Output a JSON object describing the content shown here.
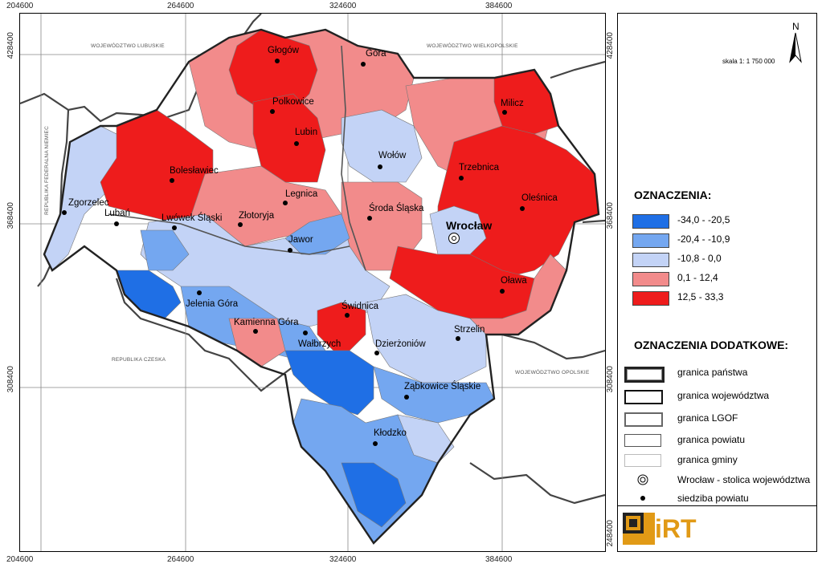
{
  "coordinates": {
    "top": [
      "204600",
      "264600",
      "324600",
      "384600"
    ],
    "bottom": [
      "204600",
      "264600",
      "324600",
      "384600"
    ],
    "left": [
      "428400",
      "368400",
      "308400"
    ],
    "right": [
      "428400",
      "368400",
      "308400",
      "248400"
    ]
  },
  "neighbors": {
    "lubuskie": "WOJEWÓDZTWO LUBUSKIE",
    "wielkopolskie": "WOJEWÓDZTWO WIELKOPOLSKIE",
    "niemcy": "REPUBLIKA FEDERALNA NIEMIEC",
    "czechy": "REPUBLIKA CZESKA",
    "opolskie": "WOJEWÓDZTWO OPOLSKIE"
  },
  "cities": [
    {
      "name": "Głogów"
    },
    {
      "name": "Góra"
    },
    {
      "name": "Polkowice"
    },
    {
      "name": "Lubin"
    },
    {
      "name": "Milicz"
    },
    {
      "name": "Wołów"
    },
    {
      "name": "Trzebnica"
    },
    {
      "name": "Bolesławiec"
    },
    {
      "name": "Oleśnica"
    },
    {
      "name": "Legnica"
    },
    {
      "name": "Zgorzelec"
    },
    {
      "name": "Lubań"
    },
    {
      "name": "Lwówek Śląski"
    },
    {
      "name": "Złotoryja"
    },
    {
      "name": "Środa Śląska"
    },
    {
      "name": "Wrocław"
    },
    {
      "name": "Jawor"
    },
    {
      "name": "Oława"
    },
    {
      "name": "Jelenia Góra"
    },
    {
      "name": "Świdnica"
    },
    {
      "name": "Kamienna Góra"
    },
    {
      "name": "Wałbrzych"
    },
    {
      "name": "Strzelin"
    },
    {
      "name": "Dzierżoniów"
    },
    {
      "name": "Ząbkowice Śląskie"
    },
    {
      "name": "Kłodzko"
    }
  ],
  "legend": {
    "scale": "skala 1: 1 750 000",
    "north": "N",
    "title": "OZNACZENIA:",
    "classes": [
      {
        "label": "-34,0 - -20,5",
        "color": "#1f6fe5"
      },
      {
        "label": "-20,4 - -10,9",
        "color": "#74a7f0"
      },
      {
        "label": "-10,8 - 0,0",
        "color": "#c3d3f6"
      },
      {
        "label": "0,1 - 12,4",
        "color": "#f28b8b"
      },
      {
        "label": "12,5 - 33,3",
        "color": "#ee1c1c"
      }
    ],
    "extra_title": "OZNACZENIA DODATKOWE:",
    "extras": [
      {
        "label": "granica państwa",
        "icon": "state-border-line"
      },
      {
        "label": "granica województwa",
        "icon": "voivodeship-border-line"
      },
      {
        "label": "granica LGOF",
        "icon": "lgof-border-line"
      },
      {
        "label": "granica powiatu",
        "icon": "county-border-line"
      },
      {
        "label": "granica gminy",
        "icon": "commune-border-line"
      },
      {
        "label": "Wrocław - stolica województwa",
        "icon": "capital-symbol"
      },
      {
        "label": "siedziba powiatu",
        "icon": "county-seat-dot"
      }
    ],
    "logo": "iRT",
    "logo_color": "#e19a16"
  }
}
